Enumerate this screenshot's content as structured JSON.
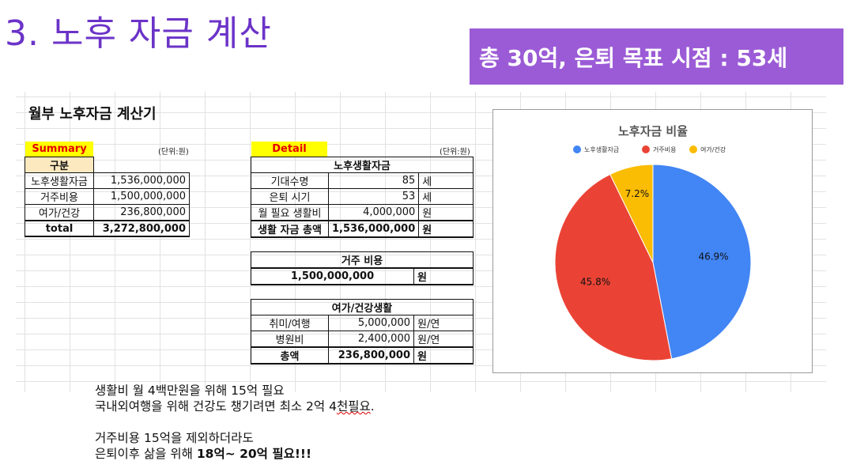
{
  "slide": {
    "title": "3. 노후 자금 계산",
    "banner": "총 30억, 은퇴 목표 시점  : 53세"
  },
  "calculator": {
    "title": "월부 노후자금 계산기",
    "summary": {
      "label": "Summary",
      "unit": "(단위:원)",
      "header": "구분",
      "rows": [
        {
          "name": "노후생활자금",
          "value": "1,536,000,000"
        },
        {
          "name": "거주비용",
          "value": "1,500,000,000"
        },
        {
          "name": "여가/건강",
          "value": "236,800,000"
        },
        {
          "name": "total",
          "value": "3,272,800,000"
        }
      ]
    },
    "detail": {
      "label": "Detail",
      "unit": "(단위:원)",
      "living": {
        "header": "노후생활자금",
        "rows": [
          {
            "name": "기대수명",
            "value": "85",
            "unit": "세"
          },
          {
            "name": "은퇴 시기",
            "value": "53",
            "unit": "세"
          },
          {
            "name": "월 필요 생활비",
            "value": "4,000,000",
            "unit": "원"
          },
          {
            "name": "생활 자금 총액",
            "value": "1,536,000,000",
            "unit": "원"
          }
        ]
      },
      "housing": {
        "header": "거주 비용",
        "value": "1,500,000,000",
        "unit": "원"
      },
      "leisure": {
        "header": "여가/건강생활",
        "rows": [
          {
            "name": "취미/여행",
            "value": "5,000,000",
            "unit": "원/연"
          },
          {
            "name": "병원비",
            "value": "2,400,000",
            "unit": "원/연"
          },
          {
            "name": "총액",
            "value": "236,800,000",
            "unit": "원"
          }
        ]
      }
    }
  },
  "chart_data": {
    "type": "pie",
    "title": "노후자금 비율",
    "legend_position": "top",
    "series": [
      {
        "name": "노후생활자금",
        "value": 46.9,
        "label": "46.9%",
        "color": "#4285f4"
      },
      {
        "name": "거주비용",
        "value": 45.8,
        "label": "45.8%",
        "color": "#ea4335"
      },
      {
        "name": "여가/건강",
        "value": 7.2,
        "label": "7.2%",
        "color": "#fbbc04"
      }
    ]
  },
  "notes": {
    "line1": "생활비 월 4백만원을 위해 15억 필요",
    "line2_main": "국내외여행을 위해 건강도 챙기려면 최소 2억 4",
    "line2_underlined": "천필요",
    "line2_end": ".",
    "line3": "거주비용 15억을 제외하더라도",
    "line4_main": "은퇴이후 삶을 위해 ",
    "line4_bold": "18억~ 20억 필요!!!"
  }
}
